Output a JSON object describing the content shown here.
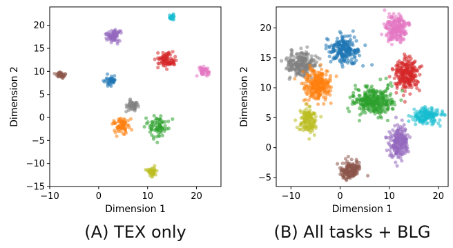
{
  "chart_data": [
    {
      "type": "scatter",
      "caption": "(A) TEX only",
      "xlabel": "Dimension 1",
      "ylabel": "Dimension 2",
      "xlim": [
        -10,
        25
      ],
      "ylim": [
        -15,
        24
      ],
      "xticks": [
        -10,
        0,
        10,
        20
      ],
      "yticks": [
        -15,
        -10,
        -5,
        0,
        5,
        10,
        15,
        20
      ],
      "grid": false,
      "legend": "none",
      "clusters": [
        {
          "color": "#17becf",
          "center": [
            15.0,
            21.8
          ],
          "spread": [
            0.3,
            0.3
          ],
          "count": 25
        },
        {
          "color": "#9467bd",
          "center": [
            3.0,
            17.6
          ],
          "spread": [
            0.8,
            0.6
          ],
          "count": 70
        },
        {
          "color": "#8c564b",
          "center": [
            -7.8,
            9.1
          ],
          "spread": [
            0.5,
            0.4
          ],
          "count": 35
        },
        {
          "color": "#1f77b4",
          "center": [
            2.3,
            7.9
          ],
          "spread": [
            0.6,
            0.6
          ],
          "count": 40
        },
        {
          "color": "#d62728",
          "center": [
            13.8,
            12.5
          ],
          "spread": [
            0.9,
            0.8
          ],
          "count": 80
        },
        {
          "color": "#e377c2",
          "center": [
            21.5,
            10.0
          ],
          "spread": [
            0.6,
            0.5
          ],
          "count": 45
        },
        {
          "color": "#7f7f7f",
          "center": [
            7.0,
            2.5
          ],
          "spread": [
            0.6,
            0.7
          ],
          "count": 45
        },
        {
          "color": "#ff7f0e",
          "center": [
            4.5,
            -1.8
          ],
          "spread": [
            0.8,
            0.9
          ],
          "count": 70
        },
        {
          "color": "#2ca02c",
          "center": [
            12.0,
            -2.0
          ],
          "spread": [
            1.2,
            1.2
          ],
          "count": 75
        },
        {
          "color": "#bcbd22",
          "center": [
            10.8,
            -11.8
          ],
          "spread": [
            0.6,
            0.5
          ],
          "count": 45
        }
      ]
    },
    {
      "type": "scatter",
      "caption": "(B) All tasks + BLG",
      "xlabel": "Dimension 1",
      "ylabel": "Dimension 2",
      "xlim": [
        -13,
        22
      ],
      "ylim": [
        -6.5,
        23.5
      ],
      "xticks": [
        -10,
        0,
        10,
        20
      ],
      "yticks": [
        -5,
        0,
        5,
        10,
        15,
        20
      ],
      "grid": false,
      "legend": "none",
      "clusters": [
        {
          "color": "#e377c2",
          "center": [
            11.5,
            19.8
          ],
          "spread": [
            1.1,
            1.1
          ],
          "count": 200
        },
        {
          "color": "#1f77b4",
          "center": [
            0.8,
            16.2
          ],
          "spread": [
            1.5,
            1.2
          ],
          "count": 220
        },
        {
          "color": "#7f7f7f",
          "center": [
            -8.0,
            14.0
          ],
          "spread": [
            1.5,
            1.0
          ],
          "count": 220
        },
        {
          "color": "#ff7f0e",
          "center": [
            -4.5,
            10.5
          ],
          "spread": [
            1.3,
            1.2
          ],
          "count": 250
        },
        {
          "color": "#d62728",
          "center": [
            13.5,
            12.3
          ],
          "spread": [
            1.2,
            1.3
          ],
          "count": 230
        },
        {
          "color": "#2ca02c",
          "center": [
            7.0,
            7.8
          ],
          "spread": [
            2.0,
            1.1
          ],
          "count": 300
        },
        {
          "color": "#17becf",
          "center": [
            17.5,
            5.3
          ],
          "spread": [
            1.5,
            0.7
          ],
          "count": 160
        },
        {
          "color": "#bcbd22",
          "center": [
            -6.5,
            4.5
          ],
          "spread": [
            0.8,
            1.0
          ],
          "count": 130
        },
        {
          "color": "#9467bd",
          "center": [
            12.0,
            1.0
          ],
          "spread": [
            1.0,
            1.4
          ],
          "count": 200
        },
        {
          "color": "#8c564b",
          "center": [
            2.0,
            -3.8
          ],
          "spread": [
            1.0,
            0.8
          ],
          "count": 170
        }
      ]
    }
  ]
}
